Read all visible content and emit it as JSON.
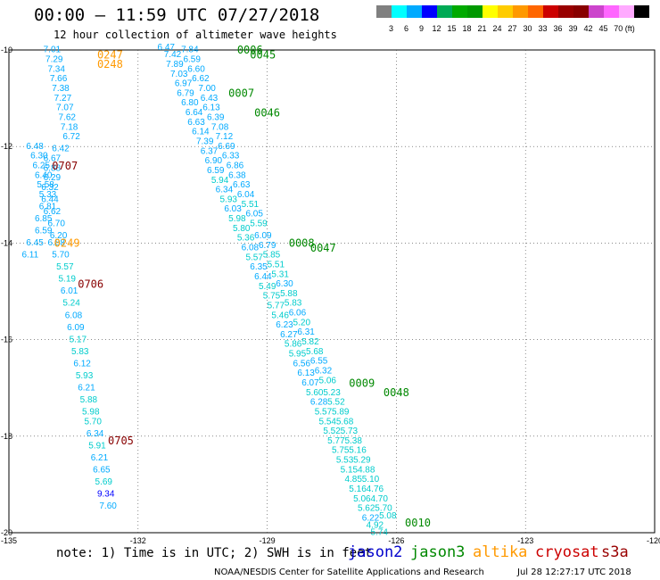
{
  "title": "00:00 — 11:59 UTC 07/27/2018",
  "subtitle": "12 hour collection of altimeter wave heights",
  "colorbar": {
    "colors": [
      "#808080",
      "#00ffff",
      "#00aaff",
      "#0000ff",
      "#00aa55",
      "#00aa00",
      "#009900",
      "#ffff00",
      "#ffcc00",
      "#ff9900",
      "#ff6600",
      "#cc0000",
      "#990000",
      "#880000",
      "#cc44cc",
      "#ff66ff",
      "#ffaaff",
      "#000000"
    ],
    "labels": [
      "3",
      "6",
      "9",
      "12",
      "15",
      "18",
      "21",
      "24",
      "27",
      "30",
      "33",
      "36",
      "39",
      "42",
      "45",
      "70 (ft)"
    ]
  },
  "axes": {
    "lon_ticks": [
      "-135",
      "-132",
      "-129",
      "-126",
      "-123",
      "-120"
    ],
    "lat_ticks": [
      "-10",
      "-12",
      "-14",
      "-16",
      "-18",
      "-20"
    ],
    "lon_range": [
      -135,
      -120
    ],
    "lat_range": [
      -10,
      -20
    ],
    "grid": "dotted"
  },
  "footer": {
    "note": "note: 1) Time is in UTC; 2) SWH is in feet",
    "satellites": [
      {
        "name": "jason2",
        "color": "#0000cc"
      },
      {
        "name": "jason3",
        "color": "#008800"
      },
      {
        "name": "altika",
        "color": "#ff9900"
      },
      {
        "name": "cryosat",
        "color": "#cc0000"
      },
      {
        "name": "s3a",
        "color": "#990000"
      }
    ],
    "credit": "NOAA/NESDIS Center for Satellite Applications and Research",
    "generated": "Jul 28 12:27:17 UTC 2018"
  },
  "track_labels": [
    {
      "text": "0247",
      "lon": -132.95,
      "lat": -10.1,
      "color": "#ff9900"
    },
    {
      "text": "0248",
      "lon": -132.95,
      "lat": -10.3,
      "color": "#ff9900"
    },
    {
      "text": "0707",
      "lon": -134.0,
      "lat": -12.4,
      "color": "#880000"
    },
    {
      "text": "0249",
      "lon": -133.95,
      "lat": -14.0,
      "color": "#ff9900"
    },
    {
      "text": "0706",
      "lon": -133.4,
      "lat": -14.85,
      "color": "#880000"
    },
    {
      "text": "0705",
      "lon": -132.7,
      "lat": -18.1,
      "color": "#880000"
    },
    {
      "text": "0006",
      "lon": -129.7,
      "lat": -10.0,
      "color": "#008800"
    },
    {
      "text": "0045",
      "lon": -129.4,
      "lat": -10.1,
      "color": "#008800"
    },
    {
      "text": "0007",
      "lon": -129.9,
      "lat": -10.9,
      "color": "#008800"
    },
    {
      "text": "0046",
      "lon": -129.3,
      "lat": -11.3,
      "color": "#008800"
    },
    {
      "text": "0008",
      "lon": -128.5,
      "lat": -14.0,
      "color": "#008800"
    },
    {
      "text": "0047",
      "lon": -128.0,
      "lat": -14.1,
      "color": "#008800"
    },
    {
      "text": "0009",
      "lon": -127.1,
      "lat": -16.9,
      "color": "#008800"
    },
    {
      "text": "0048",
      "lon": -126.3,
      "lat": -17.1,
      "color": "#008800"
    },
    {
      "text": "0010",
      "lon": -125.8,
      "lat": -19.8,
      "color": "#008800"
    }
  ],
  "swh_points": [
    {
      "v": "7.01",
      "lon": -134.2,
      "lat": -10.05,
      "c": "#00aaff"
    },
    {
      "v": "7.29",
      "lon": -134.15,
      "lat": -10.25,
      "c": "#00aaff"
    },
    {
      "v": "7.34",
      "lon": -134.1,
      "lat": -10.45,
      "c": "#00aaff"
    },
    {
      "v": "7.66",
      "lon": -134.05,
      "lat": -10.65,
      "c": "#00aaff"
    },
    {
      "v": "7.38",
      "lon": -134.0,
      "lat": -10.85,
      "c": "#00aaff"
    },
    {
      "v": "7.27",
      "lon": -133.95,
      "lat": -11.05,
      "c": "#00aaff"
    },
    {
      "v": "7.07",
      "lon": -133.9,
      "lat": -11.25,
      "c": "#00aaff"
    },
    {
      "v": "7.62",
      "lon": -133.85,
      "lat": -11.45,
      "c": "#00aaff"
    },
    {
      "v": "7.18",
      "lon": -133.8,
      "lat": -11.65,
      "c": "#00aaff"
    },
    {
      "v": "6.72",
      "lon": -133.75,
      "lat": -11.85,
      "c": "#00aaff"
    },
    {
      "v": "6.48",
      "lon": -134.6,
      "lat": -12.05,
      "c": "#00aaff"
    },
    {
      "v": "6.42",
      "lon": -134.0,
      "lat": -12.1,
      "c": "#00aaff"
    },
    {
      "v": "6.30",
      "lon": -134.5,
      "lat": -12.25,
      "c": "#00aaff"
    },
    {
      "v": "6.67",
      "lon": -134.2,
      "lat": -12.3,
      "c": "#00aaff"
    },
    {
      "v": "6.25",
      "lon": -134.45,
      "lat": -12.45,
      "c": "#00aaff"
    },
    {
      "v": "6.88",
      "lon": -134.2,
      "lat": -12.5,
      "c": "#00aaff"
    },
    {
      "v": "6.40",
      "lon": -134.4,
      "lat": -12.65,
      "c": "#00aaff"
    },
    {
      "v": "6.29",
      "lon": -134.2,
      "lat": -12.7,
      "c": "#00aaff"
    },
    {
      "v": "5.58",
      "lon": -134.35,
      "lat": -12.85,
      "c": "#00aaff"
    },
    {
      "v": "6.32",
      "lon": -134.25,
      "lat": -12.9,
      "c": "#00aaff"
    },
    {
      "v": "5.33",
      "lon": -134.3,
      "lat": -13.05,
      "c": "#00aaff"
    },
    {
      "v": "6.44",
      "lon": -134.25,
      "lat": -13.15,
      "c": "#00aaff"
    },
    {
      "v": "6.81",
      "lon": -134.3,
      "lat": -13.3,
      "c": "#00aaff"
    },
    {
      "v": "6.62",
      "lon": -134.2,
      "lat": -13.4,
      "c": "#00aaff"
    },
    {
      "v": "6.85",
      "lon": -134.4,
      "lat": -13.55,
      "c": "#00aaff"
    },
    {
      "v": "6.70",
      "lon": -134.1,
      "lat": -13.65,
      "c": "#00aaff"
    },
    {
      "v": "6.59",
      "lon": -134.4,
      "lat": -13.8,
      "c": "#00aaff"
    },
    {
      "v": "6.20",
      "lon": -134.05,
      "lat": -13.9,
      "c": "#00aaff"
    },
    {
      "v": "6.45",
      "lon": -134.6,
      "lat": -14.05,
      "c": "#00aaff"
    },
    {
      "v": "6.88",
      "lon": -134.1,
      "lat": -14.05,
      "c": "#00aaff"
    },
    {
      "v": "6.11",
      "lon": -134.7,
      "lat": -14.3,
      "c": "#00aaff"
    },
    {
      "v": "5.70",
      "lon": -134.0,
      "lat": -14.3,
      "c": "#00aaff"
    },
    {
      "v": "5.57",
      "lon": -133.9,
      "lat": -14.55,
      "c": "#00cccc"
    },
    {
      "v": "5.19",
      "lon": -133.85,
      "lat": -14.8,
      "c": "#00cccc"
    },
    {
      "v": "6.01",
      "lon": -133.8,
      "lat": -15.05,
      "c": "#00aaff"
    },
    {
      "v": "5.24",
      "lon": -133.75,
      "lat": -15.3,
      "c": "#00cccc"
    },
    {
      "v": "6.08",
      "lon": -133.7,
      "lat": -15.55,
      "c": "#00aaff"
    },
    {
      "v": "6.09",
      "lon": -133.65,
      "lat": -15.8,
      "c": "#00aaff"
    },
    {
      "v": "5.17",
      "lon": -133.6,
      "lat": -16.05,
      "c": "#00cccc"
    },
    {
      "v": "5.83",
      "lon": -133.55,
      "lat": -16.3,
      "c": "#00cccc"
    },
    {
      "v": "6.12",
      "lon": -133.5,
      "lat": -16.55,
      "c": "#00aaff"
    },
    {
      "v": "5.93",
      "lon": -133.45,
      "lat": -16.8,
      "c": "#00cccc"
    },
    {
      "v": "6.21",
      "lon": -133.4,
      "lat": -17.05,
      "c": "#00aaff"
    },
    {
      "v": "5.88",
      "lon": -133.35,
      "lat": -17.3,
      "c": "#00cccc"
    },
    {
      "v": "5.98",
      "lon": -133.3,
      "lat": -17.55,
      "c": "#00cccc"
    },
    {
      "v": "5.70",
      "lon": -133.25,
      "lat": -17.75,
      "c": "#00cccc"
    },
    {
      "v": "6.34",
      "lon": -133.2,
      "lat": -18.0,
      "c": "#00aaff"
    },
    {
      "v": "5.91",
      "lon": -133.15,
      "lat": -18.25,
      "c": "#00cccc"
    },
    {
      "v": "6.21",
      "lon": -133.1,
      "lat": -18.5,
      "c": "#00aaff"
    },
    {
      "v": "6.65",
      "lon": -133.05,
      "lat": -18.75,
      "c": "#00aaff"
    },
    {
      "v": "5.69",
      "lon": -133.0,
      "lat": -19.0,
      "c": "#00cccc"
    },
    {
      "v": "9.34",
      "lon": -132.95,
      "lat": -19.25,
      "c": "#0000ff"
    },
    {
      "v": "7.60",
      "lon": -132.9,
      "lat": -19.5,
      "c": "#00aaff"
    },
    {
      "v": "6.47",
      "lon": -131.55,
      "lat": -10.0,
      "c": "#00aaff"
    },
    {
      "v": "7.42",
      "lon": -131.4,
      "lat": -10.15,
      "c": "#00aaff"
    },
    {
      "v": "7.84",
      "lon": -131.0,
      "lat": -10.05,
      "c": "#00aaff"
    },
    {
      "v": "7.89",
      "lon": -131.35,
      "lat": -10.35,
      "c": "#00aaff"
    },
    {
      "v": "6.59",
      "lon": -130.95,
      "lat": -10.25,
      "c": "#00aaff"
    },
    {
      "v": "7.03",
      "lon": -131.25,
      "lat": -10.55,
      "c": "#00aaff"
    },
    {
      "v": "6.60",
      "lon": -130.85,
      "lat": -10.45,
      "c": "#00aaff"
    },
    {
      "v": "6.97",
      "lon": -131.15,
      "lat": -10.75,
      "c": "#00aaff"
    },
    {
      "v": "6.62",
      "lon": -130.75,
      "lat": -10.65,
      "c": "#00aaff"
    },
    {
      "v": "6.79",
      "lon": -131.1,
      "lat": -10.95,
      "c": "#00aaff"
    },
    {
      "v": "7.00",
      "lon": -130.6,
      "lat": -10.85,
      "c": "#00aaff"
    },
    {
      "v": "6.80",
      "lon": -131.0,
      "lat": -11.15,
      "c": "#00aaff"
    },
    {
      "v": "6.43",
      "lon": -130.55,
      "lat": -11.05,
      "c": "#00aaff"
    },
    {
      "v": "6.64",
      "lon": -130.9,
      "lat": -11.35,
      "c": "#00aaff"
    },
    {
      "v": "6.13",
      "lon": -130.5,
      "lat": -11.25,
      "c": "#00aaff"
    },
    {
      "v": "6.63",
      "lon": -130.85,
      "lat": -11.55,
      "c": "#00aaff"
    },
    {
      "v": "6.39",
      "lon": -130.4,
      "lat": -11.45,
      "c": "#00aaff"
    },
    {
      "v": "6.14",
      "lon": -130.75,
      "lat": -11.75,
      "c": "#00aaff"
    },
    {
      "v": "7.08",
      "lon": -130.3,
      "lat": -11.65,
      "c": "#00aaff"
    },
    {
      "v": "7.39",
      "lon": -130.65,
      "lat": -11.95,
      "c": "#00aaff"
    },
    {
      "v": "7.12",
      "lon": -130.2,
      "lat": -11.85,
      "c": "#00aaff"
    },
    {
      "v": "6.37",
      "lon": -130.55,
      "lat": -12.15,
      "c": "#00aaff"
    },
    {
      "v": "6.69",
      "lon": -130.15,
      "lat": -12.05,
      "c": "#00aaff"
    },
    {
      "v": "6.90",
      "lon": -130.45,
      "lat": -12.35,
      "c": "#00aaff"
    },
    {
      "v": "6.33",
      "lon": -130.05,
      "lat": -12.25,
      "c": "#00aaff"
    },
    {
      "v": "6.59",
      "lon": -130.4,
      "lat": -12.55,
      "c": "#00aaff"
    },
    {
      "v": "6.86",
      "lon": -129.95,
      "lat": -12.45,
      "c": "#00aaff"
    },
    {
      "v": "5.94",
      "lon": -130.3,
      "lat": -12.75,
      "c": "#00cccc"
    },
    {
      "v": "6.38",
      "lon": -129.9,
      "lat": -12.65,
      "c": "#00aaff"
    },
    {
      "v": "6.34",
      "lon": -130.2,
      "lat": -12.95,
      "c": "#00aaff"
    },
    {
      "v": "6.63",
      "lon": -129.8,
      "lat": -12.85,
      "c": "#00aaff"
    },
    {
      "v": "5.93",
      "lon": -130.1,
      "lat": -13.15,
      "c": "#00cccc"
    },
    {
      "v": "6.04",
      "lon": -129.7,
      "lat": -13.05,
      "c": "#00aaff"
    },
    {
      "v": "6.03",
      "lon": -130.0,
      "lat": -13.35,
      "c": "#00aaff"
    },
    {
      "v": "5.51",
      "lon": -129.6,
      "lat": -13.25,
      "c": "#00cccc"
    },
    {
      "v": "5.98",
      "lon": -129.9,
      "lat": -13.55,
      "c": "#00cccc"
    },
    {
      "v": "6.05",
      "lon": -129.5,
      "lat": -13.45,
      "c": "#00aaff"
    },
    {
      "v": "5.80",
      "lon": -129.8,
      "lat": -13.75,
      "c": "#00cccc"
    },
    {
      "v": "5.59",
      "lon": -129.4,
      "lat": -13.65,
      "c": "#00cccc"
    },
    {
      "v": "5.36",
      "lon": -129.7,
      "lat": -13.95,
      "c": "#00cccc"
    },
    {
      "v": "6.09",
      "lon": -129.3,
      "lat": -13.9,
      "c": "#00aaff"
    },
    {
      "v": "6.08",
      "lon": -129.6,
      "lat": -14.15,
      "c": "#00aaff"
    },
    {
      "v": "6.79",
      "lon": -129.2,
      "lat": -14.1,
      "c": "#00aaff"
    },
    {
      "v": "5.57",
      "lon": -129.5,
      "lat": -14.35,
      "c": "#00cccc"
    },
    {
      "v": "5.85",
      "lon": -129.1,
      "lat": -14.3,
      "c": "#00cccc"
    },
    {
      "v": "6.35",
      "lon": -129.4,
      "lat": -14.55,
      "c": "#00aaff"
    },
    {
      "v": "5.51",
      "lon": -129.0,
      "lat": -14.5,
      "c": "#00cccc"
    },
    {
      "v": "6.44",
      "lon": -129.3,
      "lat": -14.75,
      "c": "#00aaff"
    },
    {
      "v": "5.31",
      "lon": -128.9,
      "lat": -14.7,
      "c": "#00cccc"
    },
    {
      "v": "5.49",
      "lon": -129.2,
      "lat": -14.95,
      "c": "#00cccc"
    },
    {
      "v": "6.30",
      "lon": -128.8,
      "lat": -14.9,
      "c": "#00aaff"
    },
    {
      "v": "5.75",
      "lon": -129.1,
      "lat": -15.15,
      "c": "#00cccc"
    },
    {
      "v": "5.88",
      "lon": -128.7,
      "lat": -15.1,
      "c": "#00cccc"
    },
    {
      "v": "5.77",
      "lon": -129.0,
      "lat": -15.35,
      "c": "#00cccc"
    },
    {
      "v": "5.83",
      "lon": -128.6,
      "lat": -15.3,
      "c": "#00cccc"
    },
    {
      "v": "5.46",
      "lon": -128.9,
      "lat": -15.55,
      "c": "#00cccc"
    },
    {
      "v": "6.06",
      "lon": -128.5,
      "lat": -15.5,
      "c": "#00aaff"
    },
    {
      "v": "6.23",
      "lon": -128.8,
      "lat": -15.75,
      "c": "#00aaff"
    },
    {
      "v": "5.20",
      "lon": -128.4,
      "lat": -15.7,
      "c": "#00cccc"
    },
    {
      "v": "6.27",
      "lon": -128.7,
      "lat": -15.95,
      "c": "#00aaff"
    },
    {
      "v": "6.31",
      "lon": -128.3,
      "lat": -15.9,
      "c": "#00aaff"
    },
    {
      "v": "5.86",
      "lon": -128.6,
      "lat": -16.15,
      "c": "#00cccc"
    },
    {
      "v": "5.82",
      "lon": -128.2,
      "lat": -16.1,
      "c": "#00cccc"
    },
    {
      "v": "5.95",
      "lon": -128.5,
      "lat": -16.35,
      "c": "#00cccc"
    },
    {
      "v": "5.68",
      "lon": -128.1,
      "lat": -16.3,
      "c": "#00cccc"
    },
    {
      "v": "6.56",
      "lon": -128.4,
      "lat": -16.55,
      "c": "#00aaff"
    },
    {
      "v": "6.55",
      "lon": -128.0,
      "lat": -16.5,
      "c": "#00aaff"
    },
    {
      "v": "6.13",
      "lon": -128.3,
      "lat": -16.75,
      "c": "#00aaff"
    },
    {
      "v": "6.32",
      "lon": -127.9,
      "lat": -16.7,
      "c": "#00aaff"
    },
    {
      "v": "6.07",
      "lon": -128.2,
      "lat": -16.95,
      "c": "#00aaff"
    },
    {
      "v": "5.06",
      "lon": -127.8,
      "lat": -16.9,
      "c": "#00cccc"
    },
    {
      "v": "5.60",
      "lon": -128.1,
      "lat": -17.15,
      "c": "#00cccc"
    },
    {
      "v": "5.23",
      "lon": -127.7,
      "lat": -17.15,
      "c": "#00cccc"
    },
    {
      "v": "6.28",
      "lon": -128.0,
      "lat": -17.35,
      "c": "#00aaff"
    },
    {
      "v": "5.52",
      "lon": -127.6,
      "lat": -17.35,
      "c": "#00cccc"
    },
    {
      "v": "5.57",
      "lon": -127.9,
      "lat": -17.55,
      "c": "#00cccc"
    },
    {
      "v": "5.89",
      "lon": -127.5,
      "lat": -17.55,
      "c": "#00cccc"
    },
    {
      "v": "5.54",
      "lon": -127.8,
      "lat": -17.75,
      "c": "#00cccc"
    },
    {
      "v": "5.68",
      "lon": -127.4,
      "lat": -17.75,
      "c": "#00cccc"
    },
    {
      "v": "5.52",
      "lon": -127.7,
      "lat": -17.95,
      "c": "#00cccc"
    },
    {
      "v": "5.73",
      "lon": -127.3,
      "lat": -17.95,
      "c": "#00cccc"
    },
    {
      "v": "5.77",
      "lon": -127.6,
      "lat": -18.15,
      "c": "#00cccc"
    },
    {
      "v": "5.38",
      "lon": -127.2,
      "lat": -18.15,
      "c": "#00cccc"
    },
    {
      "v": "5.75",
      "lon": -127.5,
      "lat": -18.35,
      "c": "#00cccc"
    },
    {
      "v": "5.16",
      "lon": -127.1,
      "lat": -18.35,
      "c": "#00cccc"
    },
    {
      "v": "5.53",
      "lon": -127.4,
      "lat": -18.55,
      "c": "#00cccc"
    },
    {
      "v": "5.29",
      "lon": -127.0,
      "lat": -18.55,
      "c": "#00cccc"
    },
    {
      "v": "5.15",
      "lon": -127.3,
      "lat": -18.75,
      "c": "#00cccc"
    },
    {
      "v": "4.88",
      "lon": -126.9,
      "lat": -18.75,
      "c": "#00cccc"
    },
    {
      "v": "4.85",
      "lon": -127.2,
      "lat": -18.95,
      "c": "#00cccc"
    },
    {
      "v": "5.10",
      "lon": -126.8,
      "lat": -18.95,
      "c": "#00cccc"
    },
    {
      "v": "5.16",
      "lon": -127.1,
      "lat": -19.15,
      "c": "#00cccc"
    },
    {
      "v": "4.76",
      "lon": -126.7,
      "lat": -19.15,
      "c": "#00cccc"
    },
    {
      "v": "5.06",
      "lon": -127.0,
      "lat": -19.35,
      "c": "#00cccc"
    },
    {
      "v": "4.70",
      "lon": -126.6,
      "lat": -19.35,
      "c": "#00cccc"
    },
    {
      "v": "5.62",
      "lon": -126.9,
      "lat": -19.55,
      "c": "#00cccc"
    },
    {
      "v": "5.70",
      "lon": -126.5,
      "lat": -19.55,
      "c": "#00cccc"
    },
    {
      "v": "6.22",
      "lon": -126.8,
      "lat": -19.75,
      "c": "#00aaff"
    },
    {
      "v": "5.08",
      "lon": -126.4,
      "lat": -19.7,
      "c": "#00cccc"
    },
    {
      "v": "4.92",
      "lon": -126.7,
      "lat": -19.9,
      "c": "#00cccc"
    },
    {
      "v": "5.74",
      "lon": -126.6,
      "lat": -20.05,
      "c": "#00cccc"
    }
  ]
}
